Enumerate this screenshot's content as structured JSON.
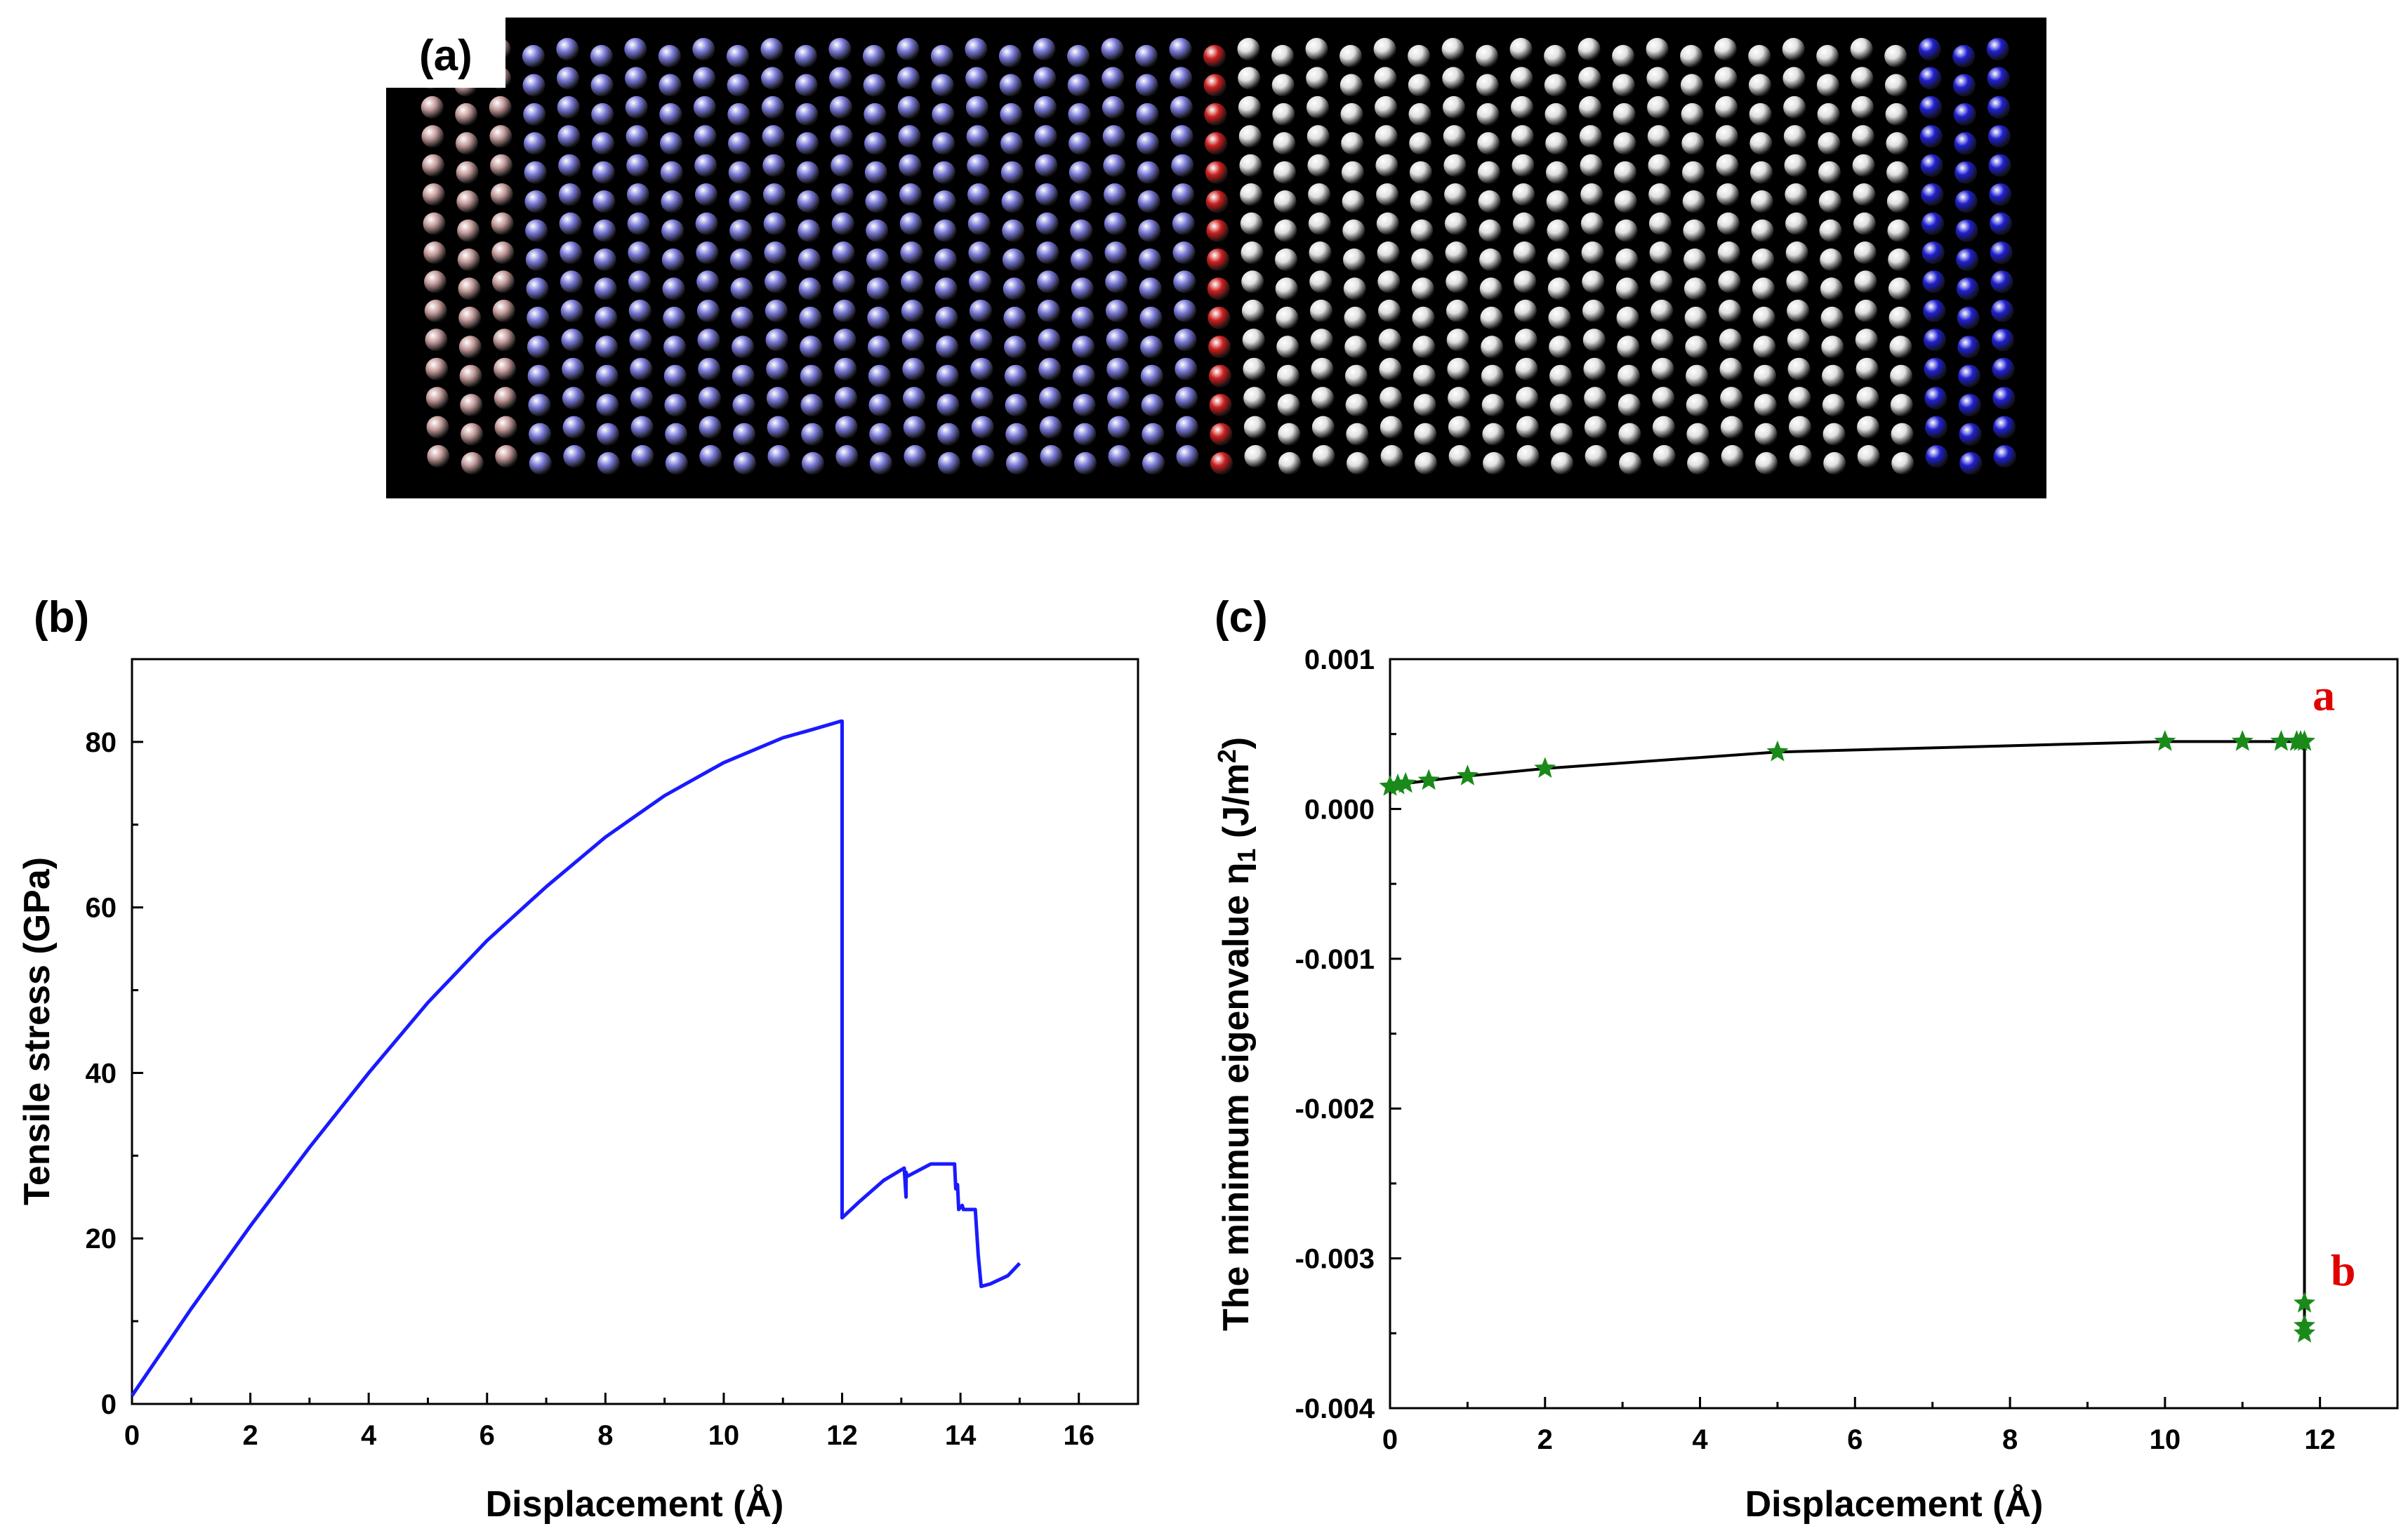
{
  "figure": {
    "panel_a_label": "(a)",
    "panel_b_label": "(b)",
    "panel_c_label": "(c)",
    "panel_a_regions": [
      {
        "name": "rigid-left",
        "color": "#c49a9a",
        "cols": 3
      },
      {
        "name": "slab-left",
        "color": "#7a7ad8",
        "cols": 20
      },
      {
        "name": "interface",
        "color": "#cc2020",
        "cols": 1
      },
      {
        "name": "slab-right",
        "color": "#e0e0e0",
        "cols": 20
      },
      {
        "name": "rigid-right",
        "color": "#2020d0",
        "cols": 3
      }
    ]
  },
  "chart_data": [
    {
      "type": "line",
      "panel": "b",
      "title": "",
      "xlabel": "Displacement (Å)",
      "ylabel": "Tensile stress (GPa)",
      "xlim": [
        0,
        17
      ],
      "ylim": [
        0,
        90
      ],
      "xticks": [
        0,
        2,
        4,
        6,
        8,
        10,
        12,
        14,
        16
      ],
      "yticks": [
        0,
        20,
        40,
        60,
        80
      ],
      "color": "#1a1aff",
      "series": [
        {
          "name": "stress",
          "x": [
            0,
            1,
            2,
            3,
            4,
            5,
            6,
            7,
            8,
            9,
            10,
            11,
            11.5,
            11.98,
            12.0,
            12.0,
            12.3,
            12.7,
            13.05,
            13.08,
            13.08,
            13.1,
            13.5,
            13.9,
            13.92,
            13.95,
            13.97,
            14.03,
            14.05,
            14.2,
            14.25,
            14.3,
            14.35,
            14.5,
            14.8,
            15.0
          ],
          "y": [
            1,
            11.5,
            21.5,
            31,
            40,
            48.5,
            56,
            62.5,
            68.5,
            73.5,
            77.5,
            80.5,
            81.5,
            82.5,
            82.5,
            22.5,
            24.5,
            27,
            28.5,
            25,
            28,
            27.5,
            29,
            29,
            26,
            26.5,
            23.5,
            24,
            23.5,
            23.5,
            23.5,
            18,
            14.2,
            14.5,
            15.5,
            17
          ]
        }
      ]
    },
    {
      "type": "line",
      "panel": "c",
      "title": "",
      "xlabel": "Displacement (Å)",
      "ylabel": "The minimum eigenvalue η1 (J/m²)",
      "ylabel_main": "The minimum eigenvalue η",
      "ylabel_sub": "1",
      "ylabel_tail": " (J/m",
      "ylabel_sup": "2",
      "ylabel_end": ")",
      "xlim": [
        0,
        13
      ],
      "ylim": [
        -0.004,
        0.001
      ],
      "xticks": [
        0,
        2,
        4,
        6,
        8,
        10,
        12
      ],
      "yticks": [
        -0.004,
        -0.003,
        -0.002,
        -0.001,
        0.0,
        0.001
      ],
      "ytick_labels": [
        "-0.004",
        "-0.003",
        "-0.002",
        "-0.001",
        "0.000",
        "0.001"
      ],
      "line_color": "#000000",
      "marker_color": "#1a8a1a",
      "marker": "star",
      "series": [
        {
          "name": "eigenvalue",
          "x": [
            0,
            0.1,
            0.2,
            0.5,
            1,
            2,
            5,
            10,
            11,
            11.5,
            11.7,
            11.75,
            11.8,
            11.8,
            11.8,
            11.8
          ],
          "y": [
            0.00015,
            0.00016,
            0.00017,
            0.00019,
            0.00022,
            0.00027,
            0.00038,
            0.00045,
            0.00045,
            0.00045,
            0.00045,
            0.00045,
            0.00045,
            -0.0033,
            -0.00345,
            -0.0035
          ]
        }
      ],
      "annotations": [
        {
          "text": "a",
          "x": 12.05,
          "y": 0.00066,
          "color": "#e00000"
        },
        {
          "text": "b",
          "x": 12.3,
          "y": -0.00318,
          "color": "#e00000"
        }
      ]
    }
  ]
}
